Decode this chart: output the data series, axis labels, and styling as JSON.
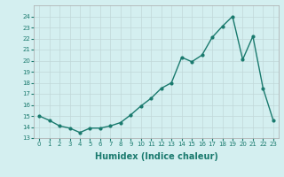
{
  "x": [
    0,
    1,
    2,
    3,
    4,
    5,
    6,
    7,
    8,
    9,
    10,
    11,
    12,
    13,
    14,
    15,
    16,
    17,
    18,
    19,
    20,
    21,
    22,
    23
  ],
  "y": [
    15.0,
    14.6,
    14.1,
    13.9,
    13.5,
    13.9,
    13.9,
    14.1,
    14.4,
    15.1,
    15.9,
    16.6,
    17.5,
    18.0,
    20.3,
    19.9,
    20.5,
    22.1,
    23.1,
    24.0,
    20.1,
    22.2,
    17.5,
    14.6
  ],
  "line_color": "#1a7a6e",
  "marker": "o",
  "marker_size": 2,
  "line_width": 1.0,
  "xlabel": "Humidex (Indice chaleur)",
  "xlabel_fontsize": 7,
  "bg_color": "#d4eff0",
  "grid_color": "#c0d8d8",
  "tick_color": "#1a7a6e",
  "ylim": [
    13,
    25
  ],
  "xlim": [
    -0.5,
    23.5
  ],
  "yticks": [
    13,
    14,
    15,
    16,
    17,
    18,
    19,
    20,
    21,
    22,
    23,
    24
  ],
  "xticks": [
    0,
    1,
    2,
    3,
    4,
    5,
    6,
    7,
    8,
    9,
    10,
    11,
    12,
    13,
    14,
    15,
    16,
    17,
    18,
    19,
    20,
    21,
    22,
    23
  ]
}
